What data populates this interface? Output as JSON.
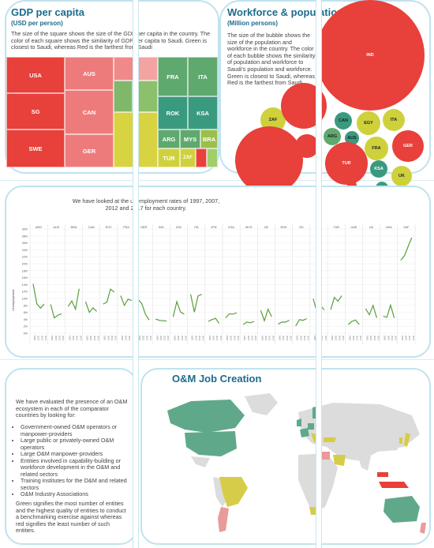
{
  "gdp": {
    "title": "GDP per capita",
    "subtitle": "(USD per person)",
    "description": "The size of the square shows the size of the GDP per capita in the country. The color of each square shows the similarity of GDP per capita to Saudi. Green is closest to Saudi, whereas Red is the farthest from Saudi",
    "cells": [
      {
        "label": "USA",
        "color": "#e8403a"
      },
      {
        "label": "SG",
        "color": "#e8403a"
      },
      {
        "label": "SWE",
        "color": "#e8403a"
      },
      {
        "label": "AUS",
        "color": "#ee7b7b"
      },
      {
        "label": "CAN",
        "color": "#ee7b7b"
      },
      {
        "label": "GER",
        "color": "#ee7b7b"
      },
      {
        "label": "FRA",
        "color": "#5fa96f"
      },
      {
        "label": "ITA",
        "color": "#5fa96f"
      },
      {
        "label": "ROK",
        "color": "#3a9a80"
      },
      {
        "label": "KSA",
        "color": "#3a9a80"
      },
      {
        "label": "ARG",
        "color": "#5fa96f"
      },
      {
        "label": "MYS",
        "color": "#5fa96f"
      },
      {
        "label": "BRA",
        "color": "#9bbf4a"
      },
      {
        "label": "TUR",
        "color": "#cfd13c"
      },
      {
        "label": "ZAF",
        "color": "#cfd13c"
      }
    ]
  },
  "workforce": {
    "title": "Workforce & population",
    "subtitle": "(Million persons)",
    "description": "The size of the bubble shows the size of the population and workforce in the country. The color of each bubble shows the similarity of population and workforce to Saudi's population and workforce. Green is closest to Saudi, whereas Red is the farthest from Saudi.",
    "bubbles": [
      {
        "label": "IND",
        "color": "#e8403a"
      },
      {
        "label": "ZAF",
        "color": "#cfd13c"
      },
      {
        "label": "CAN",
        "color": "#3a9a80"
      },
      {
        "label": "EGY",
        "color": "#cfd13c"
      },
      {
        "label": "ITA",
        "color": "#cfd13c"
      },
      {
        "label": "ARG",
        "color": "#5fa96f"
      },
      {
        "label": "AUS",
        "color": "#3a9a80"
      },
      {
        "label": "FRA",
        "color": "#cfd13c"
      },
      {
        "label": "GER",
        "color": "#e8403a"
      },
      {
        "label": "TUR",
        "color": "#e8403a"
      },
      {
        "label": "KSA",
        "color": "#3a9a80"
      },
      {
        "label": "UK",
        "color": "#cfd13c"
      },
      {
        "label": "ROK",
        "color": "#cfd13c"
      }
    ]
  },
  "unemployment": {
    "intro": "We have looked at the unemployment rates of 1997, 2007, 2012 and 2017 for each country.",
    "chart_data": {
      "type": "line",
      "ylabel": "Unemployment",
      "ylim": [
        0,
        30
      ],
      "yticks": [
        "30%",
        "28%",
        "26%",
        "24%",
        "22%",
        "20%",
        "18%",
        "16%",
        "14%",
        "12%",
        "10%",
        "8%",
        "6%",
        "4%",
        "2%",
        "0%"
      ],
      "x": [
        "1997",
        "2007",
        "2012",
        "2017"
      ],
      "color": "#5a9e3c",
      "series": [
        {
          "name": "ARG",
          "values": [
            14.2,
            8.5,
            7.2,
            8.4
          ]
        },
        {
          "name": "AUS",
          "values": [
            8.3,
            4.4,
            5.2,
            5.6
          ]
        },
        {
          "name": "BRA",
          "values": [
            7.7,
            9.3,
            6.9,
            12.8
          ]
        },
        {
          "name": "CAN",
          "values": [
            9.1,
            6.0,
            7.3,
            6.3
          ]
        },
        {
          "name": "EGY",
          "values": [
            8.4,
            8.9,
            12.7,
            11.8
          ]
        },
        {
          "name": "FRA",
          "values": [
            10.8,
            8.0,
            9.8,
            9.4
          ]
        },
        {
          "name": "GER",
          "values": [
            9.7,
            8.5,
            5.4,
            3.8
          ]
        },
        {
          "name": "IND",
          "values": [
            4.1,
            3.7,
            3.6,
            3.5
          ]
        },
        {
          "name": "IDN",
          "values": [
            4.7,
            9.1,
            6.1,
            5.5
          ]
        },
        {
          "name": "ITA",
          "values": [
            11.2,
            6.1,
            10.7,
            11.2
          ]
        },
        {
          "name": "JPN",
          "values": [
            3.4,
            3.9,
            4.3,
            2.8
          ]
        },
        {
          "name": "KSA",
          "values": [
            4.4,
            5.6,
            5.5,
            5.9
          ]
        },
        {
          "name": "MYS",
          "values": [
            2.5,
            3.2,
            3.0,
            3.4
          ]
        },
        {
          "name": "NZ",
          "values": [
            6.6,
            3.6,
            6.9,
            4.7
          ]
        },
        {
          "name": "ROK",
          "values": [
            2.6,
            3.2,
            3.2,
            3.7
          ]
        },
        {
          "name": "SG",
          "values": [
            2.1,
            3.9,
            3.7,
            4.2
          ]
        },
        {
          "name": "SWE",
          "values": [
            9.9,
            6.2,
            8.0,
            6.7
          ]
        },
        {
          "name": "TUR",
          "values": [
            6.8,
            10.3,
            9.2,
            10.8
          ]
        },
        {
          "name": "UAE",
          "values": [
            2.5,
            3.4,
            3.8,
            2.5
          ]
        },
        {
          "name": "UK",
          "values": [
            7.1,
            5.3,
            8.0,
            4.4
          ]
        },
        {
          "name": "USA",
          "values": [
            4.9,
            4.6,
            8.1,
            4.4
          ]
        },
        {
          "name": "ZAF",
          "values": [
            21.0,
            22.3,
            24.9,
            27.5
          ]
        }
      ]
    }
  },
  "om": {
    "title": "O&M Job Creation",
    "intro": "We have evaluated the presence of an O&M ecosystem in each of the comparator countries by looking for:",
    "bullets": [
      "Government-owned O&M operators or manpower-providers",
      "Large public or privately-owned O&M operators",
      "Large O&M manpower-providers",
      "Entities involved in capability-building or workforce development in the O&M and related sectors",
      "Training institutes for the O&M and related sectors",
      "O&M Industry Associations"
    ],
    "footer": "Green signifies the most number of entities and the highest quality of entities to conduct a benchmarking exercise against whereas red signifies the least number of such entities."
  }
}
